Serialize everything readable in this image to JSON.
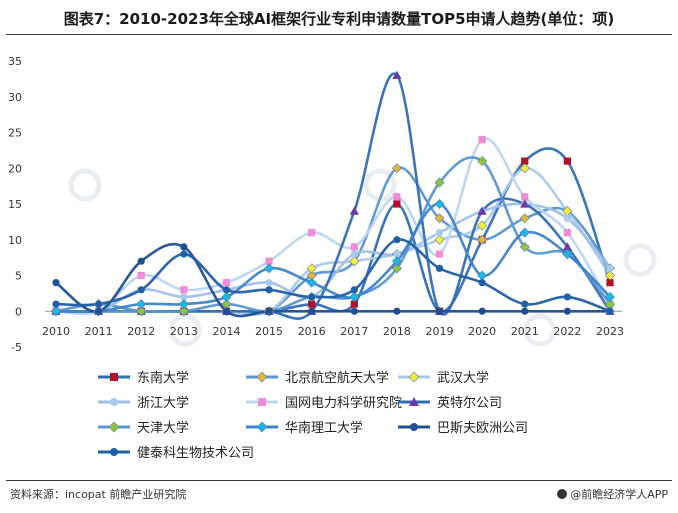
{
  "header": {
    "title": "图表7：2010-2023年全球AI框架行业专利申请数量TOP5申请人趋势(单位：项)"
  },
  "footer": {
    "source": "资料来源：incopat 前瞻产业研究院",
    "brand": "@前瞻经济学人APP"
  },
  "chart_data": {
    "type": "line",
    "smooth": true,
    "x": [
      "2010",
      "2011",
      "2012",
      "2013",
      "2014",
      "2015",
      "2016",
      "2017",
      "2018",
      "2019",
      "2020",
      "2021",
      "2022",
      "2023"
    ],
    "ylim": [
      -5,
      35
    ],
    "yticks": [
      -5,
      0,
      5,
      10,
      15,
      20,
      25,
      30,
      35
    ],
    "grid": false,
    "legend_position": "bottom",
    "series": [
      {
        "name": "东南大学",
        "color": "#2f6db5",
        "marker": "square-dark",
        "marker_color": "#b0102a",
        "values": [
          0,
          0,
          0,
          0,
          0,
          0,
          1,
          1,
          15,
          0,
          10,
          21,
          21,
          4
        ]
      },
      {
        "name": "北京航空航天大学",
        "color": "#5a96d2",
        "marker": "diamond",
        "marker_color": "#e3b43c",
        "values": [
          0,
          1,
          0,
          0,
          0,
          0,
          5,
          7,
          20,
          13,
          10,
          13,
          14,
          6
        ]
      },
      {
        "name": "武汉大学",
        "color": "#a9c9ec",
        "marker": "diamond",
        "marker_color": "#f2ee3b",
        "values": [
          0,
          0,
          0,
          0,
          0,
          0,
          6,
          7,
          8,
          10,
          12,
          20,
          14,
          5
        ]
      },
      {
        "name": "浙江大学",
        "color": "#9ec0e8",
        "marker": "circle",
        "marker_color": "#a9c9ec",
        "values": [
          0,
          0,
          3,
          2,
          3,
          4,
          2,
          8,
          8,
          11,
          14,
          15,
          13,
          6
        ]
      },
      {
        "name": "国网电力科学研究院",
        "color": "#b8d5f2",
        "marker": "square",
        "marker_color": "#f28ad8",
        "values": [
          0,
          0,
          5,
          3,
          4,
          7,
          11,
          9,
          16,
          8,
          24,
          16,
          11,
          1
        ]
      },
      {
        "name": "英特尔公司",
        "color": "#2f6db5",
        "marker": "triangle",
        "marker_color": "#6a3aa8",
        "values": [
          0,
          0,
          0,
          0,
          0,
          0,
          0,
          14,
          33,
          0,
          14,
          15,
          9,
          0
        ]
      },
      {
        "name": "天津大学",
        "color": "#5a96d2",
        "marker": "diamond",
        "marker_color": "#8cc63f",
        "values": [
          0,
          0,
          0,
          0,
          1,
          0,
          2,
          2,
          6,
          18,
          21,
          9,
          8,
          1
        ]
      },
      {
        "name": "华南理工大学",
        "color": "#3a82cc",
        "marker": "diamond",
        "marker_color": "#19b6e6",
        "values": [
          0,
          0,
          1,
          1,
          2,
          6,
          4,
          2,
          7,
          15,
          5,
          11,
          8,
          2
        ]
      },
      {
        "name": "巴斯夫欧洲公司",
        "color": "#1d4f93",
        "marker": "circle",
        "marker_color": "#1d4f93",
        "values": [
          4,
          0,
          7,
          9,
          0,
          0,
          0,
          0,
          0,
          0,
          0,
          0,
          0,
          0
        ]
      },
      {
        "name": "健泰科生物技术公司",
        "color": "#1f5ea8",
        "marker": "circle",
        "marker_color": "#1f5ea8",
        "values": [
          1,
          1,
          3,
          8,
          3,
          3,
          2,
          3,
          10,
          6,
          4,
          1,
          2,
          0
        ]
      }
    ]
  }
}
